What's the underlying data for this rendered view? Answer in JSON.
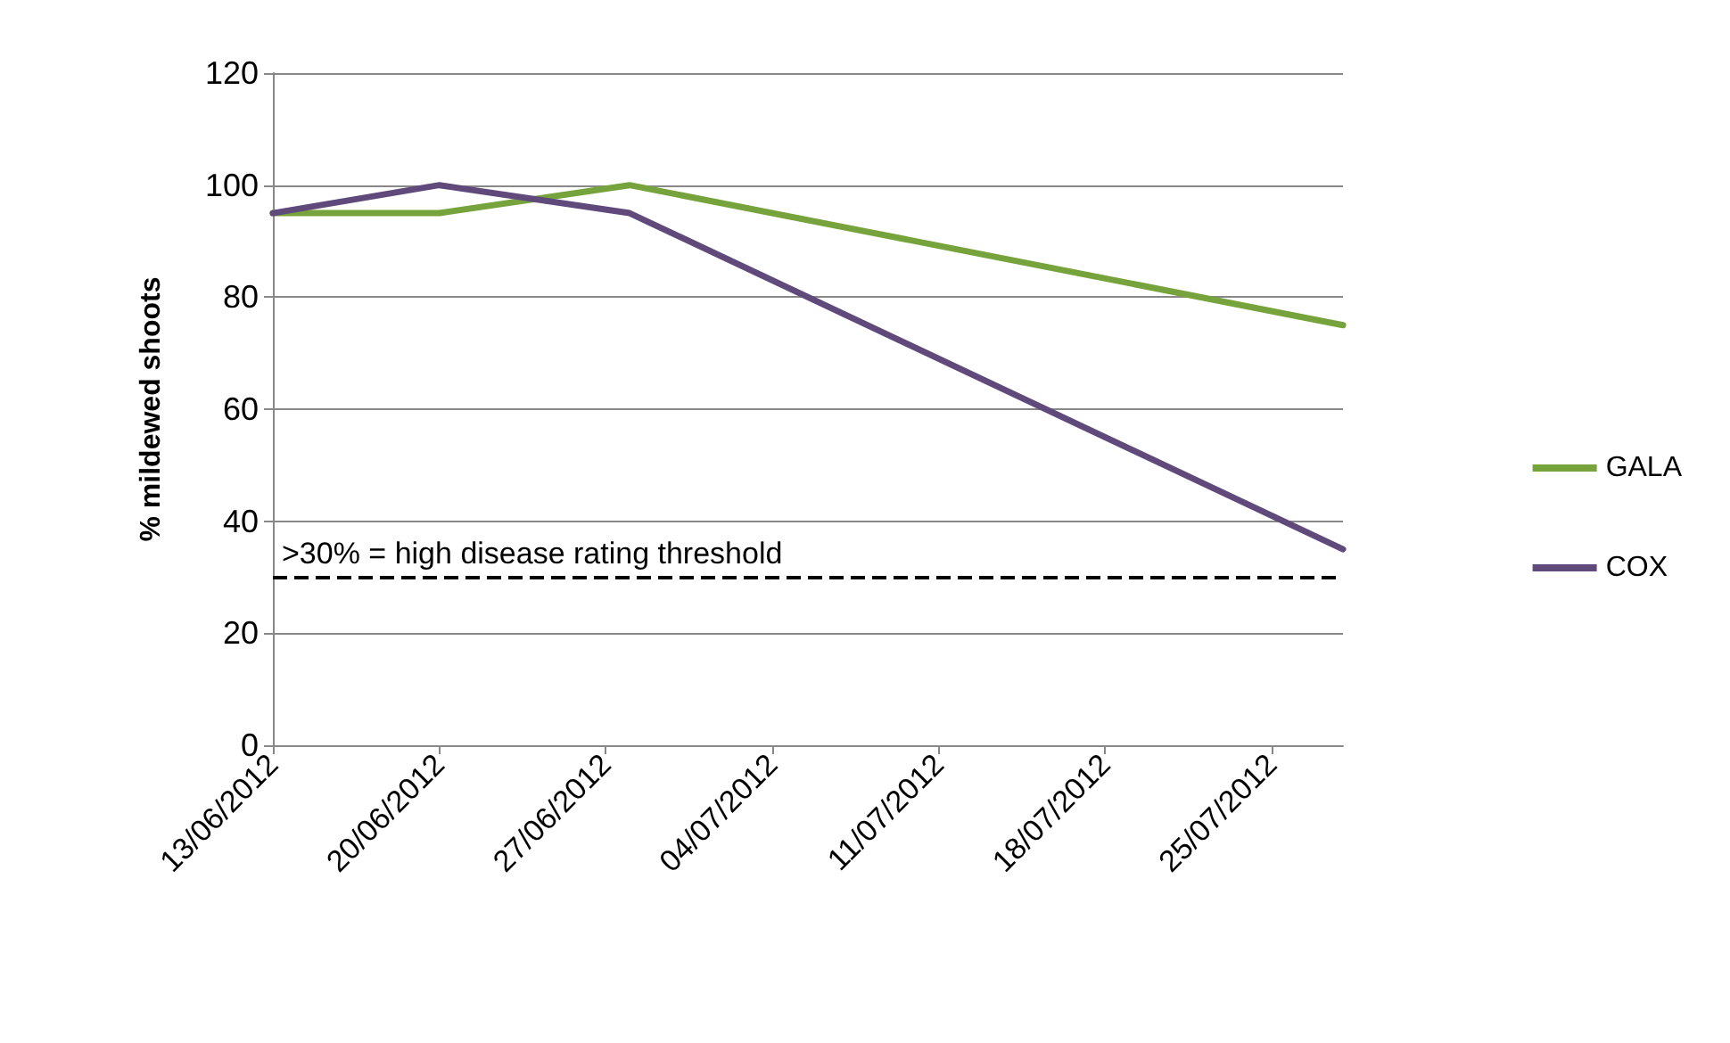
{
  "chart_data": {
    "type": "line",
    "ylabel": "% mildewed shoots",
    "x": [
      "2012-06-13",
      "2012-06-20",
      "2012-06-28",
      "2012-07-28"
    ],
    "series": [
      {
        "name": "GALA",
        "color": "#77a33c",
        "values": [
          95,
          95,
          100,
          75
        ]
      },
      {
        "name": "COX",
        "color": "#604a7b",
        "values": [
          95,
          100,
          95,
          35
        ]
      }
    ],
    "xlim": [
      "2012-06-13",
      "2012-07-28"
    ],
    "xticks": [
      {
        "value": "2012-06-13",
        "label": "13/06/2012"
      },
      {
        "value": "2012-06-20",
        "label": "20/06/2012"
      },
      {
        "value": "2012-06-27",
        "label": "27/06/2012"
      },
      {
        "value": "2012-07-04",
        "label": "04/07/2012"
      },
      {
        "value": "2012-07-11",
        "label": "11/07/2012"
      },
      {
        "value": "2012-07-18",
        "label": "18/07/2012"
      },
      {
        "value": "2012-07-25",
        "label": "25/07/2012"
      }
    ],
    "ylim": [
      0,
      120
    ],
    "yticks": [
      0,
      20,
      40,
      60,
      80,
      100,
      120
    ],
    "ref_lines": [
      {
        "axis": "y",
        "value": 30,
        "label": ">30% = high disease rating threshold",
        "color": "#000000",
        "line_style": "dashed"
      }
    ],
    "grid": "y",
    "legend": "right",
    "marker": "none",
    "line_style": "solid"
  }
}
